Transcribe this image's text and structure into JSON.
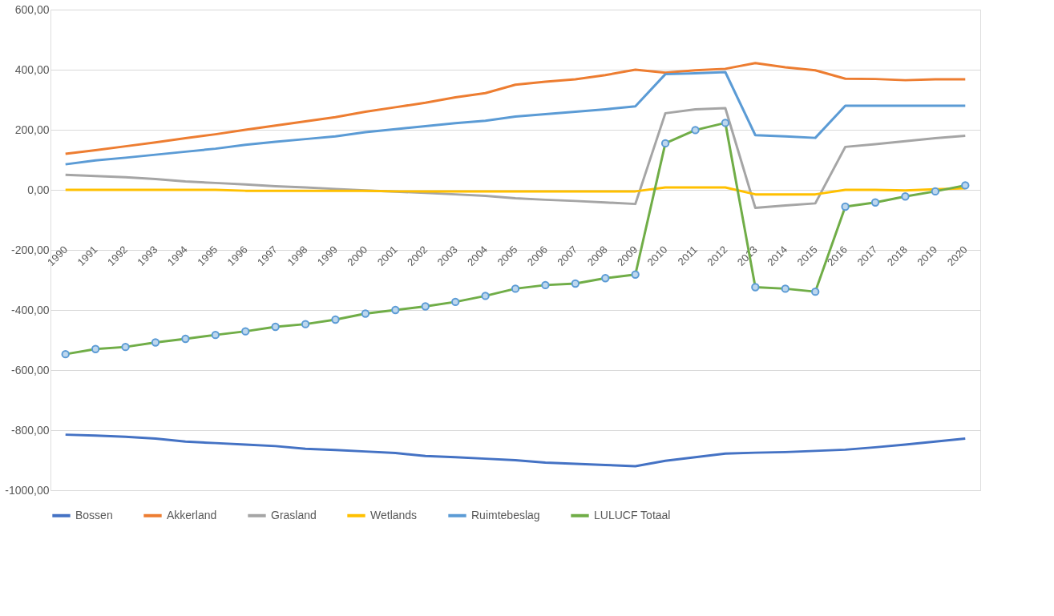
{
  "chart_data": {
    "type": "line",
    "categories": [
      "1990",
      "1991",
      "1992",
      "1993",
      "1994",
      "1995",
      "1996",
      "1997",
      "1998",
      "1999",
      "2000",
      "2001",
      "2002",
      "2003",
      "2004",
      "2005",
      "2006",
      "2007",
      "2008",
      "2009",
      "2010",
      "2011",
      "2012",
      "2013",
      "2014",
      "2015",
      "2016",
      "2017",
      "2018",
      "2019",
      "2020"
    ],
    "ylim": [
      -1000,
      600
    ],
    "yticks": [
      {
        "value": 600,
        "label": "600,00"
      },
      {
        "value": 400,
        "label": "400,00"
      },
      {
        "value": 200,
        "label": "200,00"
      },
      {
        "value": 0,
        "label": "0,00"
      },
      {
        "value": -200,
        "label": "-200,00"
      },
      {
        "value": -400,
        "label": "-400,00"
      },
      {
        "value": -600,
        "label": "-600,00"
      },
      {
        "value": -800,
        "label": "-800,00"
      },
      {
        "value": -1000,
        "label": "-1000,00"
      }
    ],
    "grid": "y",
    "legend": "bottom",
    "line_style": "solid",
    "series": [
      {
        "name": "Bossen",
        "color": "#4472c4",
        "marker": "none",
        "values": [
          -815,
          -818,
          -822,
          -828,
          -838,
          -843,
          -848,
          -853,
          -862,
          -866,
          -871,
          -876,
          -886,
          -890,
          -895,
          -900,
          -908,
          -912,
          -916,
          -920,
          -902,
          -890,
          -878,
          -875,
          -873,
          -869,
          -865,
          -857,
          -848,
          -838,
          -828
        ]
      },
      {
        "name": "Akkerland",
        "color": "#ed7d31",
        "marker": "none",
        "values": [
          120,
          132,
          145,
          158,
          172,
          185,
          200,
          214,
          228,
          242,
          260,
          275,
          290,
          308,
          322,
          350,
          360,
          368,
          382,
          400,
          390,
          398,
          403,
          422,
          408,
          398,
          370,
          369,
          365,
          368,
          368
        ]
      },
      {
        "name": "Grasland",
        "color": "#a5a5a5",
        "marker": "none",
        "values": [
          50,
          46,
          42,
          36,
          28,
          23,
          18,
          12,
          8,
          3,
          -2,
          -6,
          -10,
          -15,
          -20,
          -28,
          -33,
          -37,
          -42,
          -47,
          255,
          268,
          272,
          -60,
          -52,
          -45,
          143,
          152,
          162,
          172,
          180
        ]
      },
      {
        "name": "Wetlands",
        "color": "#ffc000",
        "marker": "none",
        "values": [
          0,
          0,
          0,
          0,
          0,
          0,
          -3,
          -3,
          -3,
          -3,
          -3,
          -5,
          -5,
          -5,
          -5,
          -5,
          -5,
          -5,
          -5,
          -5,
          8,
          8,
          8,
          -15,
          -15,
          -15,
          0,
          0,
          -2,
          2,
          5
        ]
      },
      {
        "name": "Ruimtebeslag",
        "color": "#5b9bd5",
        "marker": "none",
        "values": [
          85,
          98,
          107,
          117,
          127,
          137,
          150,
          160,
          169,
          178,
          192,
          202,
          212,
          222,
          230,
          244,
          252,
          260,
          268,
          278,
          385,
          388,
          392,
          182,
          178,
          173,
          280,
          280,
          280,
          280,
          280
        ]
      },
      {
        "name": "LULUCF Totaal",
        "color": "#70ad47",
        "marker": "circle",
        "values": [
          -547,
          -530,
          -523,
          -508,
          -496,
          -483,
          -471,
          -456,
          -447,
          -432,
          -412,
          -400,
          -388,
          -373,
          -353,
          -329,
          -317,
          -312,
          -294,
          -282,
          155,
          199,
          223,
          -324,
          -329,
          -339,
          -56,
          -42,
          -22,
          -5,
          15
        ]
      }
    ]
  }
}
